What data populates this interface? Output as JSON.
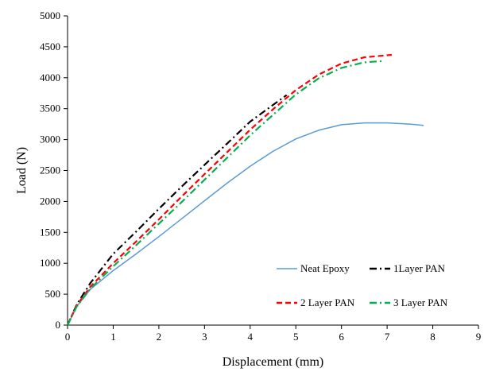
{
  "chart_data": {
    "type": "line",
    "title": "",
    "xlabel": "Displacement (mm)",
    "ylabel": "Load (N)",
    "xlim": [
      0,
      9
    ],
    "ylim": [
      0,
      5000
    ],
    "xticks": [
      0,
      1,
      2,
      3,
      4,
      5,
      6,
      7,
      8,
      9
    ],
    "yticks": [
      0,
      500,
      1000,
      1500,
      2000,
      2500,
      3000,
      3500,
      4000,
      4500,
      5000
    ],
    "grid": false,
    "legend_position": "bottom-right",
    "series": [
      {
        "name": "Neat Epoxy",
        "color": "#5b9bd5",
        "style": "solid",
        "x": [
          0,
          0.2,
          0.5,
          1,
          1.5,
          2,
          2.5,
          3,
          3.5,
          4,
          4.5,
          5,
          5.5,
          6,
          6.5,
          7,
          7.5,
          7.8
        ],
        "y": [
          0,
          300,
          580,
          880,
          1150,
          1430,
          1720,
          2010,
          2300,
          2570,
          2810,
          3010,
          3150,
          3240,
          3270,
          3270,
          3250,
          3230
        ]
      },
      {
        "name": "1Layer PAN",
        "color": "#000000",
        "style": "dashdot",
        "x": [
          0,
          0.2,
          0.5,
          1,
          1.5,
          2,
          2.5,
          3,
          3.5,
          4,
          4.5,
          4.8
        ],
        "y": [
          0,
          330,
          680,
          1150,
          1510,
          1880,
          2240,
          2590,
          2940,
          3290,
          3560,
          3720
        ]
      },
      {
        "name": "2 Layer PAN",
        "color": "#ff0000",
        "style": "dashed",
        "x": [
          0,
          0.2,
          0.5,
          1,
          1.5,
          2,
          2.5,
          3,
          3.5,
          4,
          4.5,
          5,
          5.5,
          6,
          6.5,
          7.1
        ],
        "y": [
          0,
          320,
          620,
          1000,
          1350,
          1710,
          2080,
          2440,
          2800,
          3160,
          3490,
          3800,
          4050,
          4230,
          4330,
          4370
        ]
      },
      {
        "name": "3 Layer PAN",
        "color": "#00b050",
        "style": "dashdot",
        "x": [
          0,
          0.2,
          0.5,
          1,
          1.5,
          2,
          2.5,
          3,
          3.5,
          4,
          4.5,
          5,
          5.5,
          6,
          6.5,
          6.9
        ],
        "y": [
          0,
          300,
          590,
          950,
          1290,
          1640,
          1990,
          2350,
          2710,
          3070,
          3400,
          3730,
          3990,
          4160,
          4250,
          4270
        ]
      }
    ]
  }
}
